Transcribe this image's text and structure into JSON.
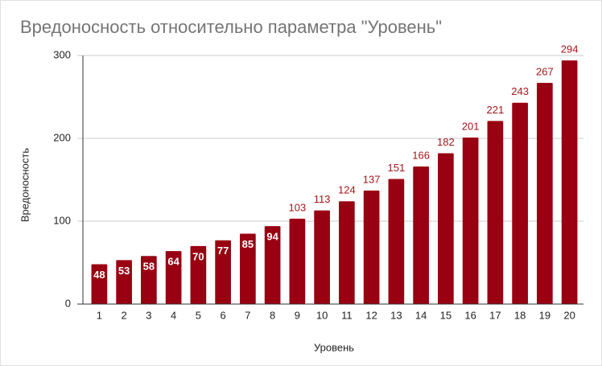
{
  "chart_data": {
    "type": "bar",
    "title": "Вредоносность относительно параметра \"Уровень\"",
    "x_label": "Уровень",
    "y_label": "Вредоносность",
    "categories": [
      "1",
      "2",
      "3",
      "4",
      "5",
      "6",
      "7",
      "8",
      "9",
      "10",
      "11",
      "12",
      "13",
      "14",
      "15",
      "16",
      "17",
      "18",
      "19",
      "20"
    ],
    "values": [
      48,
      53,
      58,
      64,
      70,
      77,
      85,
      94,
      103,
      113,
      124,
      137,
      151,
      166,
      182,
      201,
      221,
      243,
      267,
      294
    ],
    "color": "#990011",
    "ylim": [
      0,
      300
    ],
    "yticks": [
      0,
      100,
      200,
      300
    ],
    "grid": true
  }
}
